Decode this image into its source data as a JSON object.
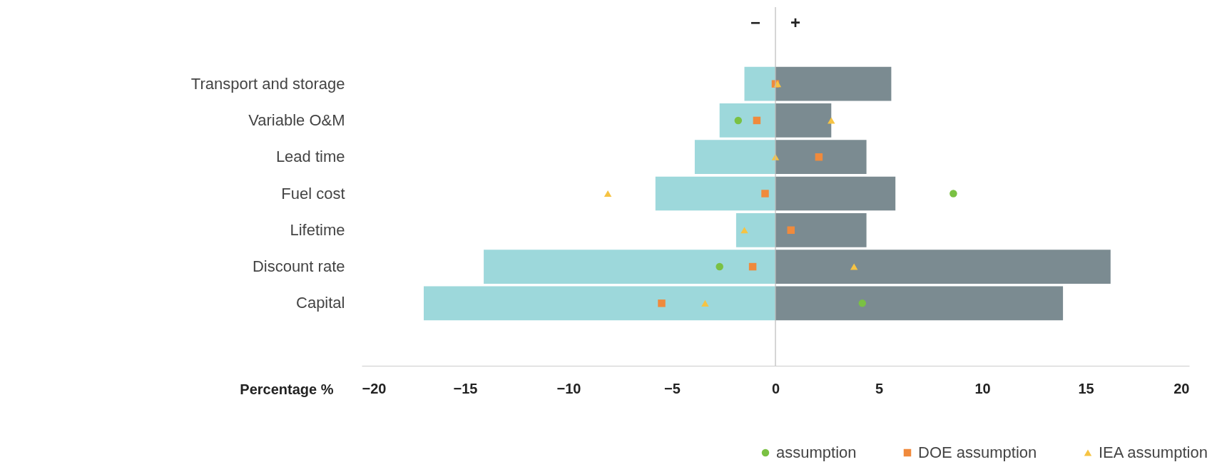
{
  "chart_data": {
    "type": "bar",
    "orientation": "horizontal",
    "xlabel": "Percentage %",
    "categories": [
      "Transport and storage",
      "Variable O&M",
      "Lead time",
      "Fuel cost",
      "Lifetime",
      "Discount rate",
      "Capital"
    ],
    "xlim": [
      -20,
      20
    ],
    "xticks": [
      -20,
      -15,
      -10,
      -5,
      0,
      5,
      10,
      15,
      20
    ],
    "grid": false,
    "legend": "bottom right",
    "series": [
      {
        "type": "bar",
        "color": "#9dd8db",
        "values": [
          -1.5,
          -2.7,
          -3.9,
          -5.8,
          -1.9,
          -14.1,
          -17.0
        ]
      },
      {
        "type": "bar",
        "color": "#7b8b91",
        "values": [
          5.6,
          2.7,
          4.4,
          5.8,
          4.4,
          16.2,
          13.9
        ]
      },
      {
        "type": "scatter",
        "name": "assumption",
        "color": "#7ac143",
        "marker": "circle",
        "values": [
          null,
          -1.8,
          null,
          8.6,
          null,
          -2.7,
          4.2
        ]
      },
      {
        "type": "scatter",
        "name": "DOE assumption",
        "color": "#f08a3c",
        "marker": "square",
        "values": [
          0.0,
          -0.9,
          2.1,
          -0.5,
          0.75,
          -1.1,
          -5.5
        ]
      },
      {
        "type": "scatter",
        "name": "IEA assumption",
        "color": "#f6c343",
        "marker": "triangle",
        "values": [
          0.1,
          2.7,
          0.0,
          -8.1,
          -1.5,
          3.8,
          -3.4
        ]
      }
    ],
    "ref_lines": [
      {
        "axis": "x",
        "value": 0,
        "color": "#bbbbbb"
      }
    ],
    "stacked": true,
    "annotations": [
      "−",
      "+"
    ]
  }
}
